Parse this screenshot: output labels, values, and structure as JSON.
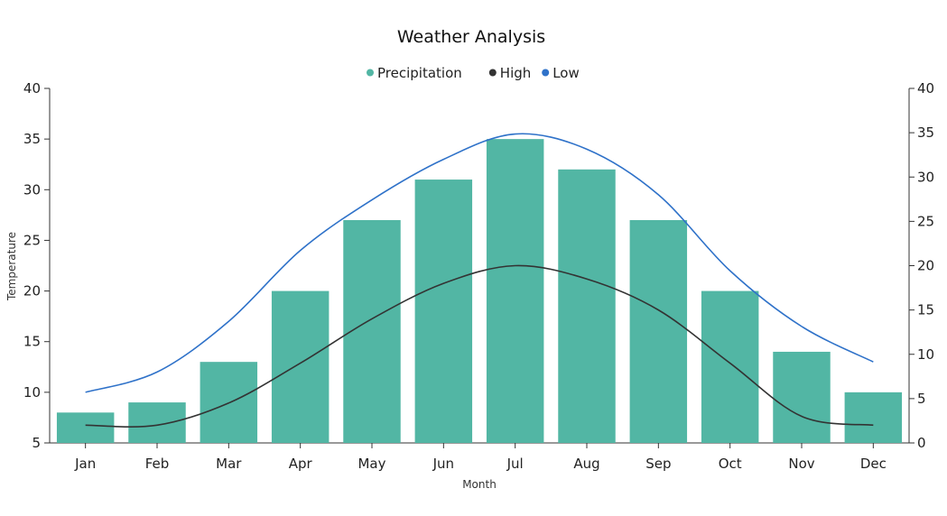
{
  "chart_data": {
    "type": "bar",
    "title": "Weather Analysis",
    "xlabel": "Month",
    "ylabel": "Temperature",
    "y2label": "",
    "categories": [
      "Jan",
      "Feb",
      "Mar",
      "Apr",
      "May",
      "Jun",
      "Jul",
      "Aug",
      "Sep",
      "Oct",
      "Nov",
      "Dec"
    ],
    "ylim": [
      5,
      40
    ],
    "y2lim": [
      0,
      40
    ],
    "yticks": [
      5,
      10,
      15,
      20,
      25,
      30,
      35,
      40
    ],
    "y2ticks": [
      0,
      5,
      10,
      15,
      20,
      25,
      30,
      35,
      40
    ],
    "grid": false,
    "legend_position": "top-center",
    "series": [
      {
        "name": "Precipitation",
        "type": "bar",
        "axis": "left",
        "color": "#52b6a4",
        "values": [
          8,
          9,
          13,
          20,
          27,
          31,
          35,
          32,
          27,
          20,
          14,
          10
        ]
      },
      {
        "name": "High",
        "type": "spline",
        "axis": "right",
        "color": "#333333",
        "values": [
          2,
          2,
          4.5,
          9,
          14,
          18,
          20,
          18.5,
          15,
          9,
          3,
          2
        ]
      },
      {
        "name": "Low",
        "type": "spline",
        "axis": "left",
        "color": "#2f72c9",
        "values": [
          10,
          12,
          17,
          24,
          29,
          33,
          35.5,
          34,
          29.5,
          22,
          16.5,
          13
        ]
      }
    ]
  }
}
